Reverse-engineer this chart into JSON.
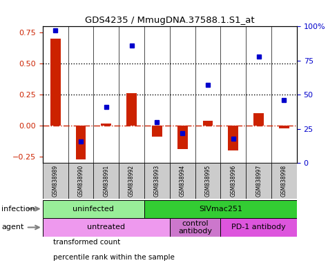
{
  "title": "GDS4235 / MmugDNA.37588.1.S1_at",
  "samples": [
    "GSM838989",
    "GSM838990",
    "GSM838991",
    "GSM838992",
    "GSM838993",
    "GSM838994",
    "GSM838995",
    "GSM838996",
    "GSM838997",
    "GSM838998"
  ],
  "transformed_count": [
    0.7,
    -0.27,
    0.02,
    0.26,
    -0.09,
    -0.19,
    0.04,
    -0.2,
    0.1,
    -0.02
  ],
  "percentile_rank": [
    97,
    16,
    41,
    86,
    30,
    22,
    57,
    18,
    78,
    46
  ],
  "ylim_left": [
    -0.3,
    0.8
  ],
  "ylim_right": [
    0,
    100
  ],
  "yticks_left": [
    -0.25,
    0,
    0.25,
    0.5,
    0.75
  ],
  "yticks_right": [
    0,
    25,
    50,
    75,
    100
  ],
  "hlines_dotted": [
    0.25,
    0.5
  ],
  "hline_dashdot": 0.0,
  "bar_color": "#cc2200",
  "dot_color": "#0000cc",
  "infection_groups": [
    {
      "label": "uninfected",
      "start": 0,
      "end": 4,
      "color": "#99ee99"
    },
    {
      "label": "SIVmac251",
      "start": 4,
      "end": 10,
      "color": "#33cc33"
    }
  ],
  "agent_groups": [
    {
      "label": "untreated",
      "start": 0,
      "end": 5,
      "color": "#ee99ee"
    },
    {
      "label": "control\nantibody",
      "start": 5,
      "end": 7,
      "color": "#cc77cc"
    },
    {
      "label": "PD-1 antibody",
      "start": 7,
      "end": 10,
      "color": "#dd55dd"
    }
  ],
  "legend_bar_color": "#cc2200",
  "legend_dot_color": "#0000cc",
  "infection_label": "infection",
  "agent_label": "agent",
  "sample_bg_color": "#cccccc",
  "right_ytick_labels": [
    "0",
    "25",
    "50",
    "75",
    "100%"
  ]
}
